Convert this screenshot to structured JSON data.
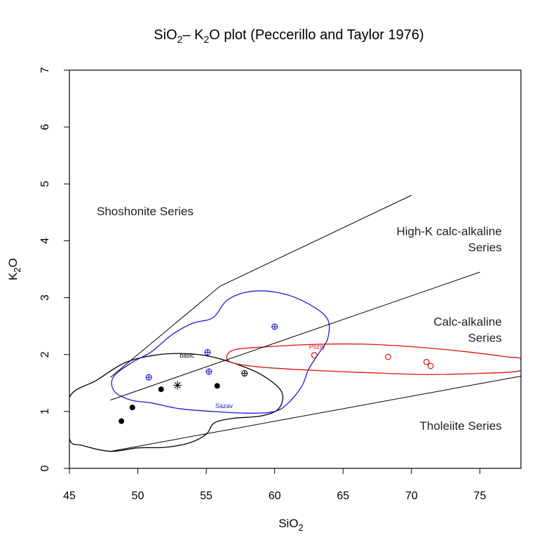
{
  "chart_data": {
    "type": "scatter",
    "title": {
      "a": "SiO",
      "a_sub": "2",
      "b": "– K",
      "b_sub": "2",
      "c": "O plot (Peccerillo and Taylor 1976)"
    },
    "xlabel": {
      "main": "SiO",
      "sub": "2"
    },
    "ylabel": {
      "main": "K",
      "sub": "2",
      "tail": "O"
    },
    "xlim": [
      45,
      78
    ],
    "ylim": [
      0,
      7
    ],
    "xticks": [
      45,
      50,
      55,
      60,
      65,
      70,
      75
    ],
    "yticks": [
      0,
      1,
      2,
      3,
      4,
      5,
      6,
      7
    ],
    "boundaries": [
      {
        "name": "shoshonite-boundary",
        "points": [
          [
            48,
            1.6
          ],
          [
            56,
            3.2
          ],
          [
            70,
            4.8
          ]
        ]
      },
      {
        "name": "high-k-boundary",
        "points": [
          [
            48,
            1.2
          ],
          [
            75,
            3.45
          ]
        ]
      },
      {
        "name": "tholeiite-boundary",
        "points": [
          [
            48,
            0.3
          ],
          [
            78,
            1.62
          ]
        ]
      }
    ],
    "region_labels": [
      {
        "name": "shoshonite",
        "lines": [
          "Shoshonite Series"
        ],
        "x": 47,
        "y": 4.45,
        "anchor": "start"
      },
      {
        "name": "high-k",
        "lines": [
          "High-K calc-alkaline",
          "Series"
        ],
        "x": 76.6,
        "y": 4.1,
        "anchor": "end"
      },
      {
        "name": "calc-alkaline",
        "lines": [
          "Calc-alkaline",
          "Series"
        ],
        "x": 76.6,
        "y": 2.51,
        "anchor": "end"
      },
      {
        "name": "tholeiite",
        "lines": [
          "Tholeiite Series"
        ],
        "x": 76.6,
        "y": 0.68,
        "anchor": "end"
      }
    ],
    "fields": [
      {
        "name": "basic",
        "label": "basic",
        "color": "#000000",
        "label_x": 53.6,
        "label_y": 1.95,
        "outline": [
          [
            45,
            1.25
          ],
          [
            47,
            1.55
          ],
          [
            49,
            1.85
          ],
          [
            51,
            1.98
          ],
          [
            53,
            2.02
          ],
          [
            55,
            1.98
          ],
          [
            57,
            1.85
          ],
          [
            59,
            1.65
          ],
          [
            60.5,
            1.35
          ],
          [
            60.3,
            1.05
          ],
          [
            59,
            0.92
          ],
          [
            57,
            0.88
          ],
          [
            55.6,
            0.8
          ],
          [
            55,
            0.6
          ],
          [
            53.8,
            0.45
          ],
          [
            52,
            0.37
          ],
          [
            50,
            0.36
          ],
          [
            48,
            0.3
          ],
          [
            46,
            0.4
          ],
          [
            45,
            0.52
          ]
        ]
      },
      {
        "name": "sazav",
        "label": "Sazav",
        "color": "#1a1adb",
        "label_x": 56.3,
        "label_y": 1.06,
        "outline": [
          [
            48.2,
            1.6
          ],
          [
            49.5,
            1.85
          ],
          [
            51,
            2.05
          ],
          [
            52.5,
            2.35
          ],
          [
            54,
            2.55
          ],
          [
            55.5,
            2.65
          ],
          [
            56.5,
            2.95
          ],
          [
            58,
            3.1
          ],
          [
            60,
            3.1
          ],
          [
            62,
            2.95
          ],
          [
            63.8,
            2.65
          ],
          [
            63.9,
            2.3
          ],
          [
            63.3,
            2.05
          ],
          [
            62.5,
            1.75
          ],
          [
            62,
            1.45
          ],
          [
            61,
            1.15
          ],
          [
            60,
            1.0
          ],
          [
            58,
            0.97
          ],
          [
            55.5,
            1.0
          ],
          [
            53,
            1.05
          ],
          [
            51,
            1.15
          ],
          [
            49.5,
            1.2
          ],
          [
            48.3,
            1.35
          ]
        ]
      },
      {
        "name": "pozry",
        "label": "Pozry",
        "color": "#e01010",
        "label_x": 63.1,
        "label_y": 2.1,
        "outline": [
          [
            56.5,
            1.95
          ],
          [
            57,
            2.08
          ],
          [
            59,
            2.13
          ],
          [
            63,
            2.18
          ],
          [
            67,
            2.18
          ],
          [
            71,
            2.12
          ],
          [
            74,
            2.05
          ],
          [
            77,
            1.96
          ],
          [
            78,
            1.92
          ],
          [
            78,
            1.72
          ],
          [
            75,
            1.67
          ],
          [
            71,
            1.65
          ],
          [
            67,
            1.68
          ],
          [
            63,
            1.72
          ],
          [
            59,
            1.78
          ],
          [
            57,
            1.85
          ]
        ]
      }
    ],
    "series": [
      {
        "name": "basic-filled",
        "symbol": "filled-circle",
        "color": "#000000",
        "points": [
          [
            48.8,
            0.83
          ],
          [
            49.6,
            1.07
          ],
          [
            51.7,
            1.39
          ],
          [
            55.8,
            1.45
          ]
        ]
      },
      {
        "name": "basic-asterisk",
        "symbol": "asterisk",
        "color": "#000000",
        "points": [
          [
            52.9,
            1.46
          ]
        ]
      },
      {
        "name": "basic-crossed",
        "symbol": "crossed-circle",
        "color": "#000000",
        "points": [
          [
            57.8,
            1.67
          ]
        ]
      },
      {
        "name": "sazav",
        "symbol": "crossed-circle",
        "color": "#1a1adb",
        "points": [
          [
            50.8,
            1.6
          ],
          [
            55.1,
            2.04
          ],
          [
            55.2,
            1.7
          ],
          [
            60.0,
            2.49
          ]
        ]
      },
      {
        "name": "pozry",
        "symbol": "open-circle",
        "color": "#e01010",
        "points": [
          [
            62.9,
            1.99
          ],
          [
            68.3,
            1.96
          ],
          [
            71.1,
            1.87
          ],
          [
            71.4,
            1.8
          ]
        ]
      }
    ]
  }
}
